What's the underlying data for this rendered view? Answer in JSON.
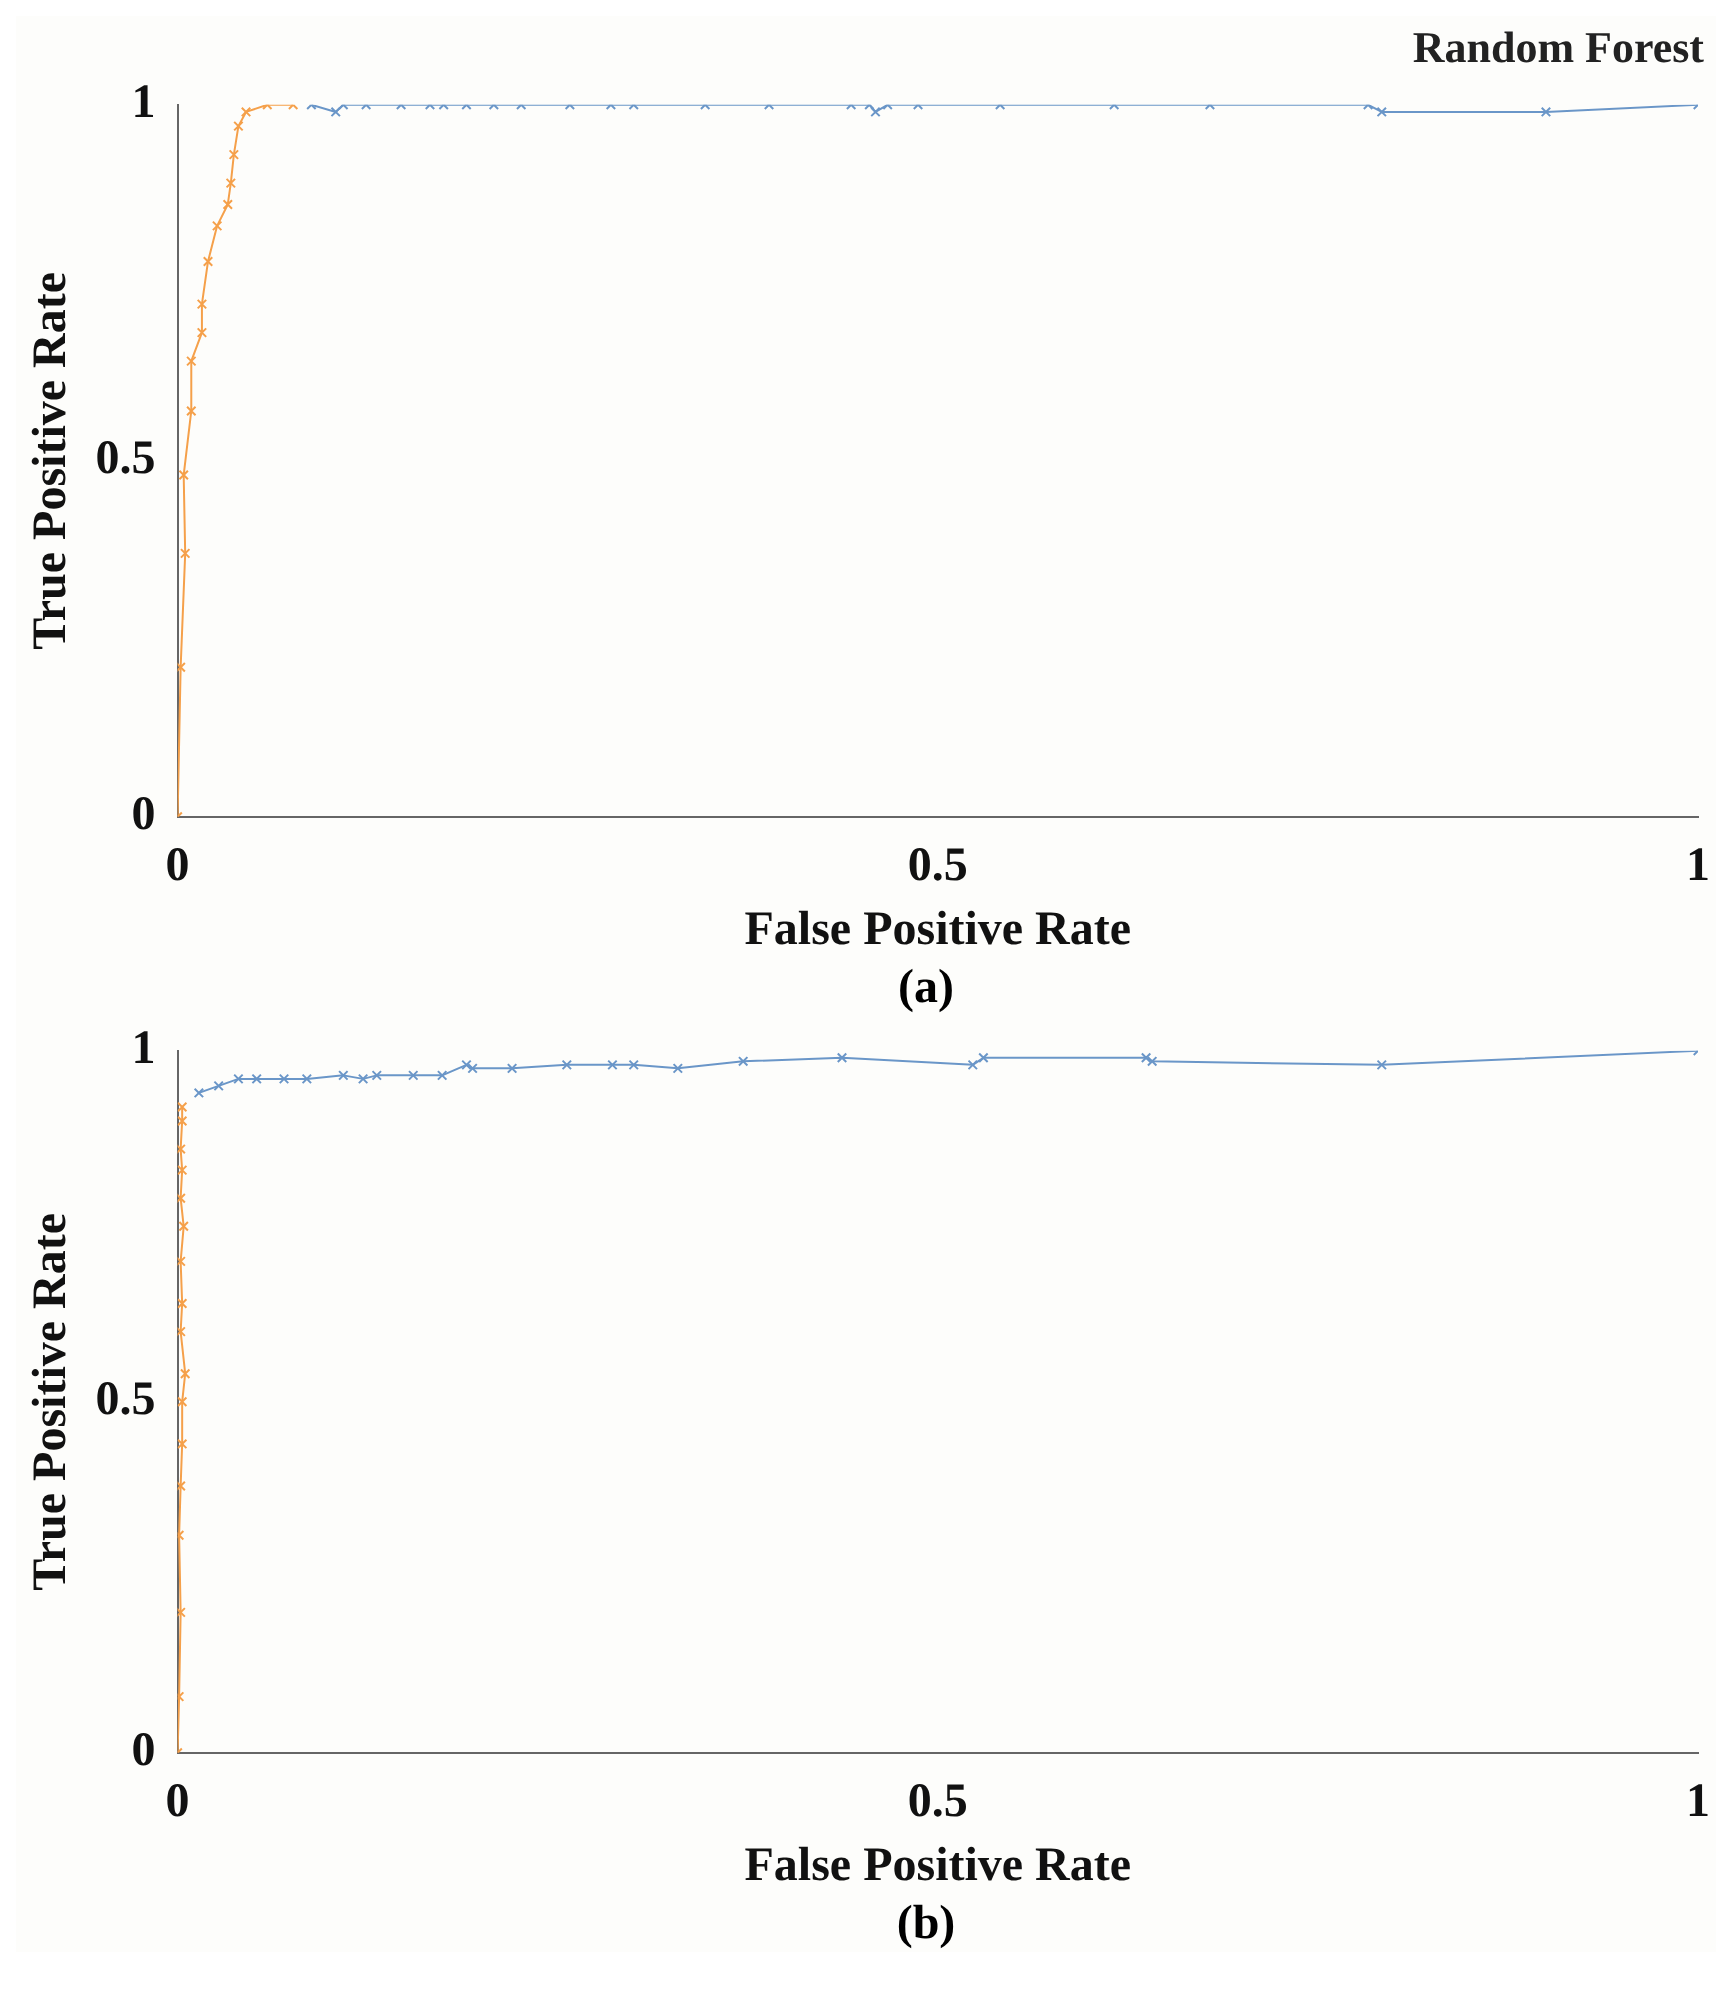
{
  "chart_data": [
    {
      "type": "line",
      "title": "Random Forest",
      "xlabel": "False Positive Rate",
      "ylabel": "True Positive Rate",
      "annotations": [
        "(a)"
      ],
      "xlim": [
        0,
        1
      ],
      "ylim": [
        0,
        1
      ],
      "xticks": [
        0,
        0.5,
        1
      ],
      "yticks": [
        0,
        0.5,
        1
      ],
      "grid": false,
      "legend": false,
      "marker": "cross",
      "line_style": "solid",
      "series": [
        {
          "color": "#f5a04a",
          "x": [
            0,
            0.002,
            0.005,
            0.004,
            0.009,
            0.009,
            0.016,
            0.016,
            0.02,
            0.026,
            0.033,
            0.035,
            0.037,
            0.04,
            0.045,
            0.059,
            0.076
          ],
          "values": [
            0,
            0.21,
            0.37,
            0.48,
            0.57,
            0.64,
            0.68,
            0.72,
            0.78,
            0.83,
            0.86,
            0.89,
            0.93,
            0.97,
            0.99,
            1.0,
            1.0
          ]
        },
        {
          "color": "#6a96c8",
          "x": [
            0.088,
            0.104,
            0.109,
            0.124,
            0.147,
            0.166,
            0.175,
            0.19,
            0.208,
            0.226,
            0.258,
            0.285,
            0.3,
            0.347,
            0.389,
            0.443,
            0.455,
            0.459,
            0.467,
            0.487,
            0.541,
            0.616,
            0.679,
            0.783,
            0.792,
            0.9,
            1.0
          ],
          "values": [
            1.0,
            0.99,
            1.0,
            1.0,
            1.0,
            1.0,
            1.0,
            1.0,
            1.0,
            1.0,
            1.0,
            1.0,
            1.0,
            1.0,
            1.0,
            1.0,
            1.0,
            0.99,
            1.0,
            1.0,
            1.0,
            1.0,
            1.0,
            1.0,
            0.99,
            0.99,
            1.0
          ]
        }
      ]
    },
    {
      "type": "line",
      "xlabel": "False Positive Rate",
      "ylabel": "True Positive Rate",
      "annotations": [
        "(b)"
      ],
      "xlim": [
        0,
        1
      ],
      "ylim": [
        0,
        1
      ],
      "xticks": [
        0,
        0.5,
        1
      ],
      "yticks": [
        0,
        0.5,
        1
      ],
      "grid": false,
      "legend": false,
      "marker": "cross",
      "line_style": "solid",
      "series": [
        {
          "color": "#f5a04a",
          "x": [
            0,
            0.001,
            0.002,
            0.001,
            0.002,
            0.003,
            0.003,
            0.005,
            0.002,
            0.003,
            0.002,
            0.004,
            0.002,
            0.003,
            0.002,
            0.003,
            0.003
          ],
          "values": [
            0,
            0.08,
            0.2,
            0.31,
            0.38,
            0.44,
            0.5,
            0.54,
            0.6,
            0.64,
            0.7,
            0.75,
            0.79,
            0.83,
            0.86,
            0.9,
            0.92
          ]
        },
        {
          "color": "#6a96c8",
          "x": [
            0.014,
            0.027,
            0.04,
            0.052,
            0.07,
            0.085,
            0.109,
            0.122,
            0.131,
            0.155,
            0.174,
            0.19,
            0.194,
            0.22,
            0.256,
            0.286,
            0.3,
            0.329,
            0.372,
            0.437,
            0.523,
            0.53,
            0.637,
            0.641,
            0.792,
            1.0
          ],
          "values": [
            0.94,
            0.95,
            0.96,
            0.96,
            0.96,
            0.96,
            0.965,
            0.96,
            0.965,
            0.965,
            0.965,
            0.98,
            0.975,
            0.975,
            0.98,
            0.98,
            0.98,
            0.975,
            0.985,
            0.99,
            0.98,
            0.99,
            0.99,
            0.985,
            0.98,
            1.0
          ]
        }
      ]
    }
  ]
}
